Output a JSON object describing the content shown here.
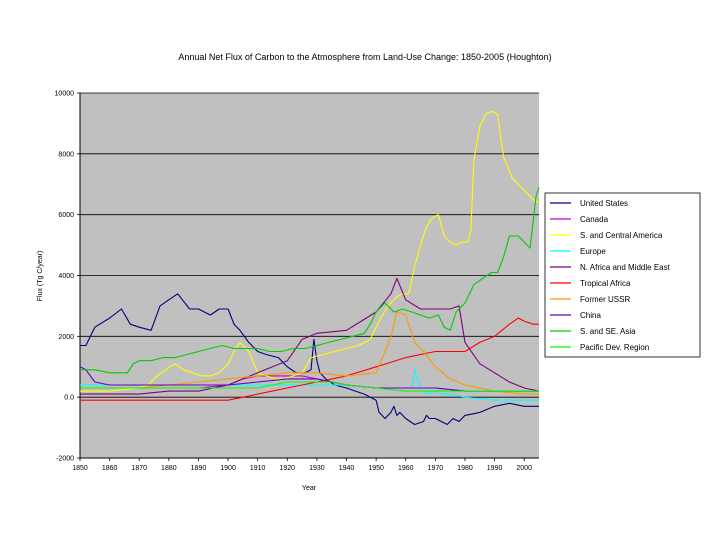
{
  "chart_data": {
    "type": "line",
    "title": "Annual Net Flux of Carbon to the Atmosphere from Land-Use Change: 1850-2005 (Houghton)",
    "xlabel": "Year",
    "ylabel": "Flux (Tg C/year)",
    "xlim": [
      1850,
      2005
    ],
    "ylim": [
      -2000,
      10000
    ],
    "x_ticks": [
      1850,
      1860,
      1870,
      1880,
      1890,
      1900,
      1910,
      1920,
      1930,
      1940,
      1950,
      1960,
      1970,
      1980,
      1990,
      2000
    ],
    "x_tick_labels": [
      "1850",
      "1860",
      "1870",
      "1880",
      "1890",
      "1900",
      "1910",
      "1920",
      "1930",
      "1940",
      "1950",
      "1960",
      "1970",
      "1980",
      "1990",
      "2000"
    ],
    "y_ticks": [
      -2000,
      0,
      2000,
      4000,
      6000,
      8000,
      10000
    ],
    "y_tick_labels": [
      "-2000",
      "0.0",
      "2000",
      "4000",
      "6000",
      "8000",
      "10000"
    ],
    "grid": "horizontal",
    "plot_background": "#c0c0c0",
    "legend_position": "right",
    "series": [
      {
        "name": "United States",
        "color": "#000080",
        "x": [
          1850,
          1852,
          1855,
          1860,
          1864,
          1867,
          1870,
          1874,
          1877,
          1880,
          1883,
          1887,
          1890,
          1894,
          1897,
          1900,
          1902,
          1904,
          1907,
          1910,
          1913,
          1917,
          1920,
          1923,
          1926,
          1928,
          1929,
          1930,
          1931,
          1933,
          1936,
          1940,
          1943,
          1946,
          1950,
          1951,
          1952,
          1953,
          1955,
          1956,
          1957,
          1958,
          1960,
          1963,
          1966,
          1967,
          1968,
          1970,
          1972,
          1974,
          1976,
          1978,
          1980,
          1985,
          1990,
          1995,
          2000,
          2005
        ],
        "y": [
          1700,
          1700,
          2300,
          2600,
          2900,
          2400,
          2300,
          2200,
          3000,
          3200,
          3400,
          2900,
          2900,
          2700,
          2900,
          2900,
          2400,
          2200,
          1800,
          1500,
          1400,
          1300,
          1000,
          800,
          800,
          900,
          1900,
          1200,
          800,
          600,
          400,
          300,
          200,
          100,
          -100,
          -500,
          -600,
          -700,
          -500,
          -300,
          -600,
          -500,
          -700,
          -900,
          -800,
          -600,
          -700,
          -700,
          -800,
          -900,
          -700,
          -800,
          -600,
          -500,
          -300,
          -200,
          -300,
          -300
        ]
      },
      {
        "name": "Canada",
        "color": "#cc00cc",
        "x": [
          1850,
          1860,
          1870,
          1880,
          1890,
          1900,
          1905,
          1910,
          1915,
          1920,
          1925,
          1930,
          1940,
          1950,
          1960,
          1970,
          1980,
          1990,
          2000,
          2005
        ],
        "y": [
          300,
          300,
          300,
          300,
          300,
          400,
          600,
          700,
          700,
          700,
          700,
          600,
          400,
          300,
          300,
          300,
          200,
          200,
          200,
          200
        ]
      },
      {
        "name": "S. and Central America",
        "color": "#ffff00",
        "x": [
          1850,
          1860,
          1870,
          1873,
          1876,
          1879,
          1882,
          1885,
          1888,
          1891,
          1894,
          1897,
          1900,
          1902,
          1904,
          1907,
          1910,
          1913,
          1916,
          1919,
          1922,
          1925,
          1928,
          1932,
          1936,
          1940,
          1944,
          1948,
          1951,
          1954,
          1957,
          1959,
          1961,
          1963,
          1965,
          1967,
          1969,
          1971,
          1973,
          1975,
          1977,
          1979,
          1981,
          1982,
          1983,
          1985,
          1987,
          1989,
          1991,
          1993,
          1996,
          1998,
          2001,
          2003,
          2005
        ],
        "y": [
          200,
          200,
          300,
          400,
          700,
          900,
          1100,
          900,
          800,
          700,
          700,
          800,
          1100,
          1500,
          1800,
          1500,
          800,
          700,
          600,
          600,
          700,
          800,
          1300,
          1400,
          1500,
          1600,
          1700,
          1900,
          2500,
          3000,
          3300,
          3400,
          3400,
          4300,
          5000,
          5600,
          5900,
          6000,
          5300,
          5100,
          5000,
          5100,
          5100,
          5500,
          7800,
          8900,
          9300,
          9400,
          9300,
          7900,
          7200,
          7000,
          6700,
          6500,
          6400
        ]
      },
      {
        "name": "Europe",
        "color": "#00ffff",
        "x": [
          1850,
          1860,
          1870,
          1880,
          1890,
          1900,
          1910,
          1920,
          1930,
          1940,
          1950,
          1955,
          1960,
          1962,
          1963,
          1965,
          1967,
          1970,
          1972,
          1975,
          1980,
          1990,
          2000,
          2005
        ],
        "y": [
          400,
          400,
          400,
          400,
          400,
          400,
          400,
          400,
          400,
          400,
          300,
          300,
          300,
          300,
          900,
          300,
          100,
          200,
          100,
          100,
          0,
          -100,
          -100,
          -100
        ]
      },
      {
        "name": "N. Africa and Middle East",
        "color": "#800080",
        "x": [
          1850,
          1860,
          1870,
          1880,
          1890,
          1900,
          1910,
          1920,
          1925,
          1930,
          1940,
          1945,
          1950,
          1955,
          1957,
          1960,
          1965,
          1970,
          1975,
          1978,
          1980,
          1985,
          1990,
          1995,
          2000,
          2005
        ],
        "y": [
          100,
          100,
          100,
          200,
          200,
          400,
          800,
          1200,
          1900,
          2100,
          2200,
          2500,
          2800,
          3400,
          3900,
          3200,
          2900,
          2900,
          2900,
          3000,
          1800,
          1100,
          800,
          500,
          300,
          200
        ]
      },
      {
        "name": "Tropical Africa",
        "color": "#ff0000",
        "x": [
          1850,
          1860,
          1870,
          1880,
          1890,
          1900,
          1905,
          1910,
          1920,
          1930,
          1940,
          1950,
          1960,
          1970,
          1975,
          1980,
          1985,
          1990,
          1995,
          1998,
          2000,
          2003,
          2005
        ],
        "y": [
          -100,
          -100,
          -100,
          -100,
          -100,
          -100,
          0,
          100,
          300,
          500,
          700,
          1000,
          1300,
          1500,
          1500,
          1500,
          1800,
          2000,
          2400,
          2600,
          2500,
          2400,
          2400
        ]
      },
      {
        "name": "Former USSR",
        "color": "#ff9900",
        "x": [
          1850,
          1860,
          1870,
          1880,
          1890,
          1900,
          1910,
          1920,
          1930,
          1940,
          1950,
          1953,
          1955,
          1957,
          1960,
          1963,
          1966,
          1970,
          1975,
          1980,
          1990,
          2000,
          2005
        ],
        "y": [
          300,
          300,
          300,
          400,
          500,
          600,
          700,
          800,
          800,
          700,
          800,
          1500,
          2000,
          2800,
          2700,
          1800,
          1500,
          1000,
          600,
          400,
          200,
          100,
          100
        ]
      },
      {
        "name": "China",
        "color": "#6600cc",
        "x": [
          1850,
          1852,
          1855,
          1860,
          1870,
          1880,
          1890,
          1900,
          1910,
          1920,
          1930,
          1940,
          1950,
          1960,
          1970,
          1980,
          1990,
          2000,
          2005
        ],
        "y": [
          1000,
          900,
          500,
          400,
          400,
          400,
          400,
          400,
          500,
          600,
          600,
          400,
          300,
          300,
          300,
          200,
          200,
          200,
          200
        ]
      },
      {
        "name": "S. and SE. Asia",
        "color": "#00cc00",
        "x": [
          1850,
          1855,
          1860,
          1863,
          1866,
          1868,
          1870,
          1874,
          1878,
          1882,
          1886,
          1890,
          1894,
          1898,
          1902,
          1906,
          1910,
          1914,
          1918,
          1922,
          1926,
          1930,
          1934,
          1938,
          1942,
          1946,
          1948,
          1950,
          1953,
          1956,
          1959,
          1962,
          1965,
          1968,
          1971,
          1973,
          1975,
          1977,
          1980,
          1983,
          1986,
          1989,
          1991,
          1993,
          1995,
          1998,
          2000,
          2002,
          2004,
          2005
        ],
        "y": [
          900,
          900,
          800,
          800,
          800,
          1100,
          1200,
          1200,
          1300,
          1300,
          1400,
          1500,
          1600,
          1700,
          1600,
          1600,
          1600,
          1500,
          1500,
          1600,
          1600,
          1700,
          1800,
          1900,
          2000,
          2100,
          2400,
          2800,
          3100,
          2800,
          2900,
          2800,
          2700,
          2600,
          2700,
          2300,
          2200,
          2800,
          3100,
          3700,
          3900,
          4100,
          4100,
          4600,
          5300,
          5300,
          5100,
          4900,
          6600,
          6900
        ]
      },
      {
        "name": "Pacific Dev. Region",
        "color": "#00ff00",
        "x": [
          1850,
          1860,
          1870,
          1880,
          1890,
          1900,
          1910,
          1915,
          1920,
          1925,
          1930,
          1935,
          1940,
          1950,
          1960,
          1970,
          1980,
          1990,
          2000,
          2005
        ],
        "y": [
          300,
          300,
          300,
          300,
          300,
          300,
          300,
          400,
          500,
          500,
          500,
          500,
          400,
          300,
          200,
          200,
          200,
          200,
          200,
          200
        ]
      }
    ]
  }
}
